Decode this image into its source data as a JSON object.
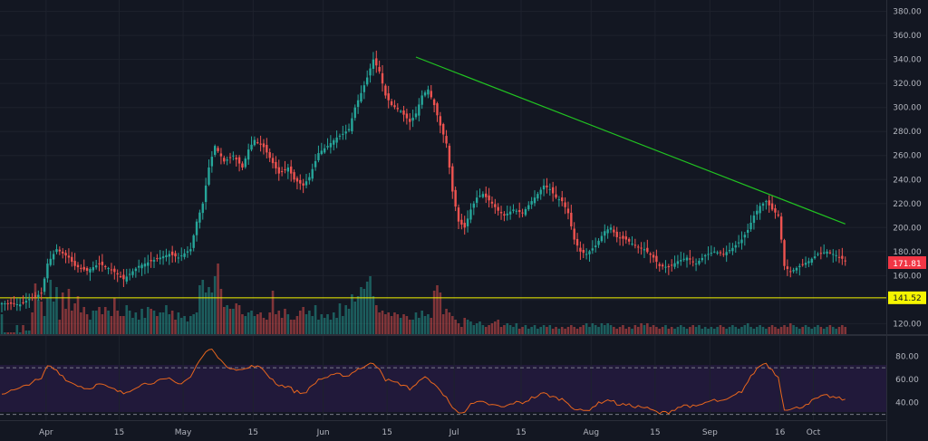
{
  "chart_data": {
    "type": "candlestick",
    "price_axis": {
      "ticks": [
        120,
        140,
        160,
        180,
        200,
        220,
        240,
        260,
        280,
        300,
        320,
        340,
        360,
        380
      ],
      "tick_labels": [
        "120.00",
        "140.00",
        "160.00",
        "180.00",
        "200.00",
        "220.00",
        "240.00",
        "260.00",
        "280.00",
        "300.00",
        "320.00",
        "340.00",
        "360.00",
        "380.00"
      ],
      "range": [
        112,
        388
      ]
    },
    "time_axis": {
      "labels": [
        "Apr",
        "15",
        "May",
        "15",
        "Jun",
        "15",
        "Jul",
        "15",
        "Aug",
        "15",
        "Sep",
        "16",
        "Oct"
      ]
    },
    "current_price": {
      "label": "171.81",
      "value": 171.81
    },
    "support_line": {
      "label": "141.52",
      "value": 141.52
    },
    "trendline": {
      "from_price": 342,
      "to_price": 203
    },
    "price_keypoints": [
      [
        0,
        137
      ],
      [
        6,
        136
      ],
      [
        10,
        142
      ],
      [
        13,
        145
      ],
      [
        15,
        170
      ],
      [
        18,
        182
      ],
      [
        22,
        175
      ],
      [
        24,
        168
      ],
      [
        28,
        164
      ],
      [
        32,
        170
      ],
      [
        36,
        165
      ],
      [
        40,
        157
      ],
      [
        45,
        168
      ],
      [
        50,
        173
      ],
      [
        55,
        178
      ],
      [
        58,
        175
      ],
      [
        62,
        182
      ],
      [
        64,
        205
      ],
      [
        66,
        220
      ],
      [
        68,
        250
      ],
      [
        70,
        268
      ],
      [
        73,
        255
      ],
      [
        76,
        260
      ],
      [
        79,
        250
      ],
      [
        81,
        265
      ],
      [
        83,
        273
      ],
      [
        86,
        267
      ],
      [
        88,
        258
      ],
      [
        91,
        245
      ],
      [
        94,
        250
      ],
      [
        96,
        240
      ],
      [
        99,
        235
      ],
      [
        101,
        242
      ],
      [
        104,
        262
      ],
      [
        107,
        268
      ],
      [
        110,
        275
      ],
      [
        112,
        278
      ],
      [
        114,
        282
      ],
      [
        116,
        300
      ],
      [
        118,
        312
      ],
      [
        120,
        325
      ],
      [
        122,
        340
      ],
      [
        124,
        330
      ],
      [
        126,
        310
      ],
      [
        128,
        302
      ],
      [
        131,
        297
      ],
      [
        134,
        288
      ],
      [
        136,
        295
      ],
      [
        138,
        310
      ],
      [
        140,
        315
      ],
      [
        142,
        302
      ],
      [
        144,
        285
      ],
      [
        146,
        270
      ],
      [
        148,
        230
      ],
      [
        150,
        205
      ],
      [
        152,
        200
      ],
      [
        154,
        215
      ],
      [
        156,
        225
      ],
      [
        158,
        228
      ],
      [
        161,
        220
      ],
      [
        163,
        214
      ],
      [
        165,
        210
      ],
      [
        168,
        215
      ],
      [
        171,
        212
      ],
      [
        174,
        222
      ],
      [
        176,
        228
      ],
      [
        178,
        235
      ],
      [
        180,
        232
      ],
      [
        182,
        225
      ],
      [
        184,
        222
      ],
      [
        186,
        212
      ],
      [
        188,
        190
      ],
      [
        190,
        180
      ],
      [
        192,
        178
      ],
      [
        195,
        185
      ],
      [
        198,
        197
      ],
      [
        200,
        200
      ],
      [
        202,
        192
      ],
      [
        205,
        190
      ],
      [
        208,
        185
      ],
      [
        211,
        182
      ],
      [
        214,
        175
      ],
      [
        216,
        168
      ],
      [
        219,
        167
      ],
      [
        222,
        172
      ],
      [
        225,
        175
      ],
      [
        228,
        170
      ],
      [
        231,
        177
      ],
      [
        234,
        180
      ],
      [
        237,
        178
      ],
      [
        240,
        183
      ],
      [
        243,
        190
      ],
      [
        245,
        198
      ],
      [
        247,
        210
      ],
      [
        249,
        218
      ],
      [
        251,
        222
      ],
      [
        253,
        215
      ],
      [
        255,
        210
      ],
      [
        256,
        190
      ],
      [
        257,
        168
      ],
      [
        259,
        163
      ],
      [
        262,
        168
      ],
      [
        265,
        172
      ],
      [
        268,
        178
      ],
      [
        271,
        180
      ],
      [
        274,
        177
      ],
      [
        276,
        174
      ],
      [
        277,
        171.81
      ]
    ],
    "volume": [
      23,
      3,
      3,
      3,
      3,
      11,
      3,
      11,
      5,
      5,
      25,
      57,
      39,
      37,
      21,
      41,
      61,
      37,
      53,
      17,
      47,
      29,
      51,
      27,
      35,
      43,
      25,
      31,
      23,
      17,
      27,
      27,
      31,
      23,
      31,
      27,
      21,
      41,
      27,
      21,
      21,
      33,
      27,
      19,
      25,
      17,
      29,
      19,
      31,
      29,
      27,
      21,
      25,
      25,
      33,
      23,
      27,
      17,
      25,
      19,
      21,
      15,
      21,
      23,
      25,
      55,
      61,
      47,
      53,
      47,
      65,
      79,
      51,
      31,
      33,
      29,
      29,
      35,
      33,
      23,
      21,
      25,
      27,
      21,
      23,
      25,
      19,
      17,
      25,
      49,
      23,
      27,
      19,
      29,
      23,
      17,
      17,
      21,
      27,
      31,
      23,
      27,
      21,
      33,
      17,
      23,
      19,
      23,
      17,
      25,
      19,
      35,
      21,
      33,
      29,
      45,
      37,
      43,
      53,
      51,
      59,
      65,
      43,
      33,
      25,
      27,
      23,
      25,
      21,
      25,
      23,
      19,
      23,
      21,
      17,
      17,
      25,
      19,
      27,
      21,
      23,
      19,
      49,
      55,
      47,
      23,
      29,
      25,
      21,
      17,
      13,
      9,
      19,
      17,
      15,
      11,
      13,
      15,
      11,
      9,
      11,
      13,
      15,
      17,
      9,
      11,
      13,
      11,
      9,
      13,
      7,
      9,
      11,
      7,
      9,
      11,
      7,
      9,
      11,
      9,
      11,
      7,
      9,
      7,
      9,
      7,
      9,
      11,
      9,
      7,
      9,
      11,
      13,
      9,
      13,
      11,
      9,
      13,
      11,
      13,
      11,
      9,
      7,
      9,
      11,
      7,
      9,
      7,
      11,
      9,
      13,
      11,
      13,
      9,
      11,
      9,
      7,
      9,
      11,
      7,
      9,
      7,
      9,
      11,
      9,
      7,
      9,
      11,
      9,
      11,
      7,
      9,
      7,
      9,
      7,
      9,
      11,
      9,
      7,
      9,
      11,
      9,
      7,
      9,
      11,
      13,
      9,
      7,
      9,
      11,
      9,
      7,
      9,
      11,
      9,
      7,
      9,
      11,
      9,
      13,
      11,
      9,
      7,
      9,
      11,
      9,
      7,
      9,
      11,
      9,
      7,
      9,
      11,
      9,
      7,
      9,
      11,
      9,
      7,
      9,
      11,
      9,
      7,
      9,
      11,
      9,
      7
    ],
    "rsi": {
      "ticks": [
        40,
        60,
        80
      ],
      "tick_labels": [
        "40.00",
        "60.00",
        "80.00"
      ],
      "range": [
        25,
        95
      ],
      "bands": [
        30,
        70
      ],
      "keypoints": [
        [
          0,
          48
        ],
        [
          6,
          52
        ],
        [
          10,
          58
        ],
        [
          13,
          60
        ],
        [
          15,
          72
        ],
        [
          18,
          68
        ],
        [
          22,
          58
        ],
        [
          24,
          56
        ],
        [
          28,
          52
        ],
        [
          32,
          56
        ],
        [
          36,
          52
        ],
        [
          40,
          48
        ],
        [
          45,
          55
        ],
        [
          50,
          58
        ],
        [
          55,
          60
        ],
        [
          58,
          56
        ],
        [
          62,
          62
        ],
        [
          64,
          72
        ],
        [
          66,
          80
        ],
        [
          68,
          86
        ],
        [
          70,
          84
        ],
        [
          73,
          72
        ],
        [
          76,
          70
        ],
        [
          79,
          68
        ],
        [
          81,
          70
        ],
        [
          83,
          72
        ],
        [
          86,
          68
        ],
        [
          88,
          62
        ],
        [
          91,
          55
        ],
        [
          94,
          54
        ],
        [
          96,
          50
        ],
        [
          99,
          48
        ],
        [
          101,
          52
        ],
        [
          104,
          60
        ],
        [
          107,
          62
        ],
        [
          110,
          64
        ],
        [
          112,
          64
        ],
        [
          114,
          63
        ],
        [
          116,
          68
        ],
        [
          118,
          70
        ],
        [
          120,
          72
        ],
        [
          122,
          74
        ],
        [
          124,
          70
        ],
        [
          126,
          60
        ],
        [
          128,
          58
        ],
        [
          131,
          56
        ],
        [
          134,
          52
        ],
        [
          136,
          56
        ],
        [
          138,
          60
        ],
        [
          140,
          62
        ],
        [
          142,
          55
        ],
        [
          144,
          50
        ],
        [
          146,
          45
        ],
        [
          148,
          35
        ],
        [
          150,
          32
        ],
        [
          152,
          33
        ],
        [
          154,
          38
        ],
        [
          156,
          40
        ],
        [
          158,
          40
        ],
        [
          161,
          38
        ],
        [
          163,
          37
        ],
        [
          165,
          36
        ],
        [
          168,
          40
        ],
        [
          171,
          40
        ],
        [
          174,
          44
        ],
        [
          176,
          46
        ],
        [
          178,
          48
        ],
        [
          180,
          46
        ],
        [
          182,
          44
        ],
        [
          184,
          43
        ],
        [
          186,
          40
        ],
        [
          188,
          35
        ],
        [
          190,
          33
        ],
        [
          192,
          33
        ],
        [
          195,
          38
        ],
        [
          198,
          42
        ],
        [
          200,
          42
        ],
        [
          202,
          39
        ],
        [
          205,
          38
        ],
        [
          208,
          37
        ],
        [
          211,
          36
        ],
        [
          214,
          33
        ],
        [
          216,
          31
        ],
        [
          219,
          32
        ],
        [
          222,
          36
        ],
        [
          225,
          38
        ],
        [
          228,
          36
        ],
        [
          231,
          40
        ],
        [
          234,
          42
        ],
        [
          237,
          41
        ],
        [
          240,
          45
        ],
        [
          243,
          50
        ],
        [
          245,
          58
        ],
        [
          247,
          66
        ],
        [
          249,
          72
        ],
        [
          251,
          74
        ],
        [
          253,
          68
        ],
        [
          255,
          62
        ],
        [
          256,
          48
        ],
        [
          257,
          35
        ],
        [
          259,
          34
        ],
        [
          262,
          36
        ],
        [
          265,
          40
        ],
        [
          268,
          44
        ],
        [
          271,
          46
        ],
        [
          274,
          44
        ],
        [
          276,
          43
        ],
        [
          277,
          42
        ]
      ]
    }
  }
}
